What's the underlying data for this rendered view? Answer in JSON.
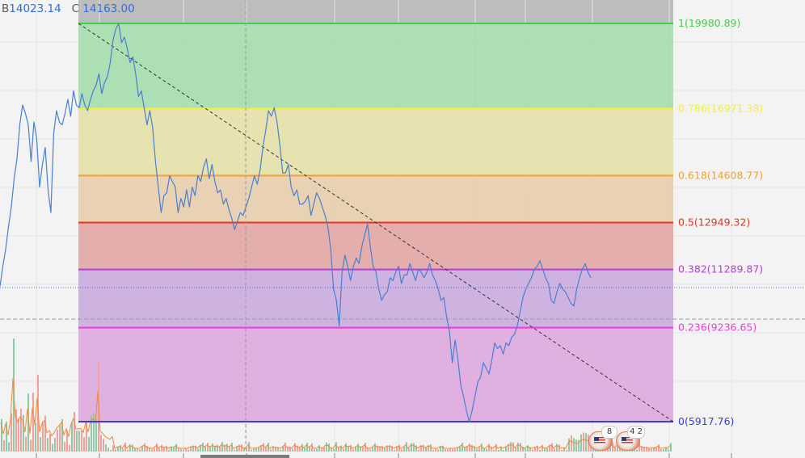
{
  "legend": {
    "b_label": "B",
    "b_value": "14023.14",
    "c_label": "C",
    "c_value": "14163.00"
  },
  "events": [
    {
      "icon": "us-flag-icon",
      "count": "8"
    },
    {
      "icon": "us-flag-icon",
      "count": "4 2"
    }
  ],
  "colors": {
    "price": "#4a7fd0",
    "trend": "#333333",
    "volume_up": "#8fc9a7",
    "volume_down": "#f0a29a",
    "volume_ma": "#f08a3c"
  },
  "chart_data": {
    "type": "line",
    "title": "",
    "xlabel": "",
    "ylabel": "",
    "ylim": [
      5400,
      20650
    ],
    "grid": true,
    "fib_levels": [
      {
        "label": "1(19980.89)",
        "ratio": 1,
        "value": 19980.89,
        "line": "#3fd13f",
        "fill": "#a8ddb0"
      },
      {
        "label": "0.786(16971.38)",
        "ratio": 0.786,
        "value": 16971.38,
        "line": "#f2f23a",
        "fill": "#e5e1ac"
      },
      {
        "label": "0.618(14608.77)",
        "ratio": 0.618,
        "value": 14608.77,
        "line": "#f2a033",
        "fill": "#e8cfb0"
      },
      {
        "label": "0.5(12949.32)",
        "ratio": 0.5,
        "value": 12949.32,
        "line": "#e8321e",
        "fill": "#e2aaa6"
      },
      {
        "label": "0.382(11289.87)",
        "ratio": 0.382,
        "value": 11289.87,
        "line": "#b33ed4",
        "fill": "#cbaede"
      },
      {
        "label": "0.236(9236.65)",
        "ratio": 0.236,
        "value": 9236.65,
        "line": "#e83edb",
        "fill": "#deacdf"
      },
      {
        "label": "0(5917.76)",
        "ratio": 0,
        "value": 5917.76,
        "line": "#3a3ae8",
        "fill": ""
      }
    ],
    "trend_line": {
      "from": 19980.89,
      "to": 5917.76
    },
    "series": [
      {
        "values": [
          10700,
          11400,
          12000,
          12800,
          13500,
          14500,
          15200,
          16400,
          17100,
          16800,
          16400,
          15100,
          16500,
          15900,
          14200,
          15000,
          15600,
          14100,
          13300,
          16100,
          16900,
          16500,
          16400,
          16800,
          17300,
          16700,
          17600,
          17100,
          17000,
          17500,
          17100,
          16900,
          17300,
          17600,
          17800,
          18200,
          17500,
          17900,
          18100,
          18600,
          19400,
          19800,
          19981,
          19300,
          19500,
          19100,
          18600,
          18800,
          18200,
          17400,
          17600,
          17000,
          16400,
          16900,
          16300,
          15100,
          14200,
          13300,
          13900,
          14000,
          14600,
          14400,
          14200,
          13300,
          13800,
          13500,
          14100,
          13500,
          14200,
          13900,
          14600,
          14400,
          14900,
          15200,
          14500,
          15000,
          14400,
          14000,
          14100,
          13600,
          13800,
          13400,
          13100,
          12700,
          13000,
          13300,
          13200,
          13500,
          13800,
          14200,
          14600,
          14300,
          14800,
          15600,
          16200,
          16900,
          16700,
          17000,
          16500,
          15700,
          14700,
          14700,
          15000,
          14200,
          13900,
          14100,
          13600,
          13600,
          13700,
          13900,
          13200,
          13600,
          14000,
          13800,
          13500,
          13200,
          12800,
          12000,
          10600,
          10200,
          9300,
          11200,
          11800,
          11400,
          10900,
          11400,
          11700,
          11500,
          12100,
          12500,
          12900,
          12100,
          11400,
          11200,
          10600,
          10200,
          10400,
          10500,
          11000,
          10900,
          11200,
          11400,
          10800,
          11100,
          11100,
          11500,
          11200,
          10900,
          11300,
          11200,
          11000,
          11200,
          11500,
          11100,
          10900,
          10600,
          10200,
          10300,
          9600,
          9100,
          8000,
          8800,
          8100,
          7200,
          6800,
          6300,
          5918,
          6300,
          6800,
          7300,
          7500,
          8000,
          7800,
          7600,
          8100,
          8700,
          8500,
          8600,
          8300,
          8700,
          8600,
          8900,
          9000,
          9300,
          9800,
          10300,
          10600,
          10800,
          11000,
          11300,
          11400,
          11600,
          11300,
          11000,
          10800,
          10200,
          10100,
          10500,
          10800,
          10600,
          10500,
          10300,
          10100,
          10000,
          10600,
          11000,
          11300,
          11500,
          11200,
          11000
        ]
      }
    ]
  }
}
